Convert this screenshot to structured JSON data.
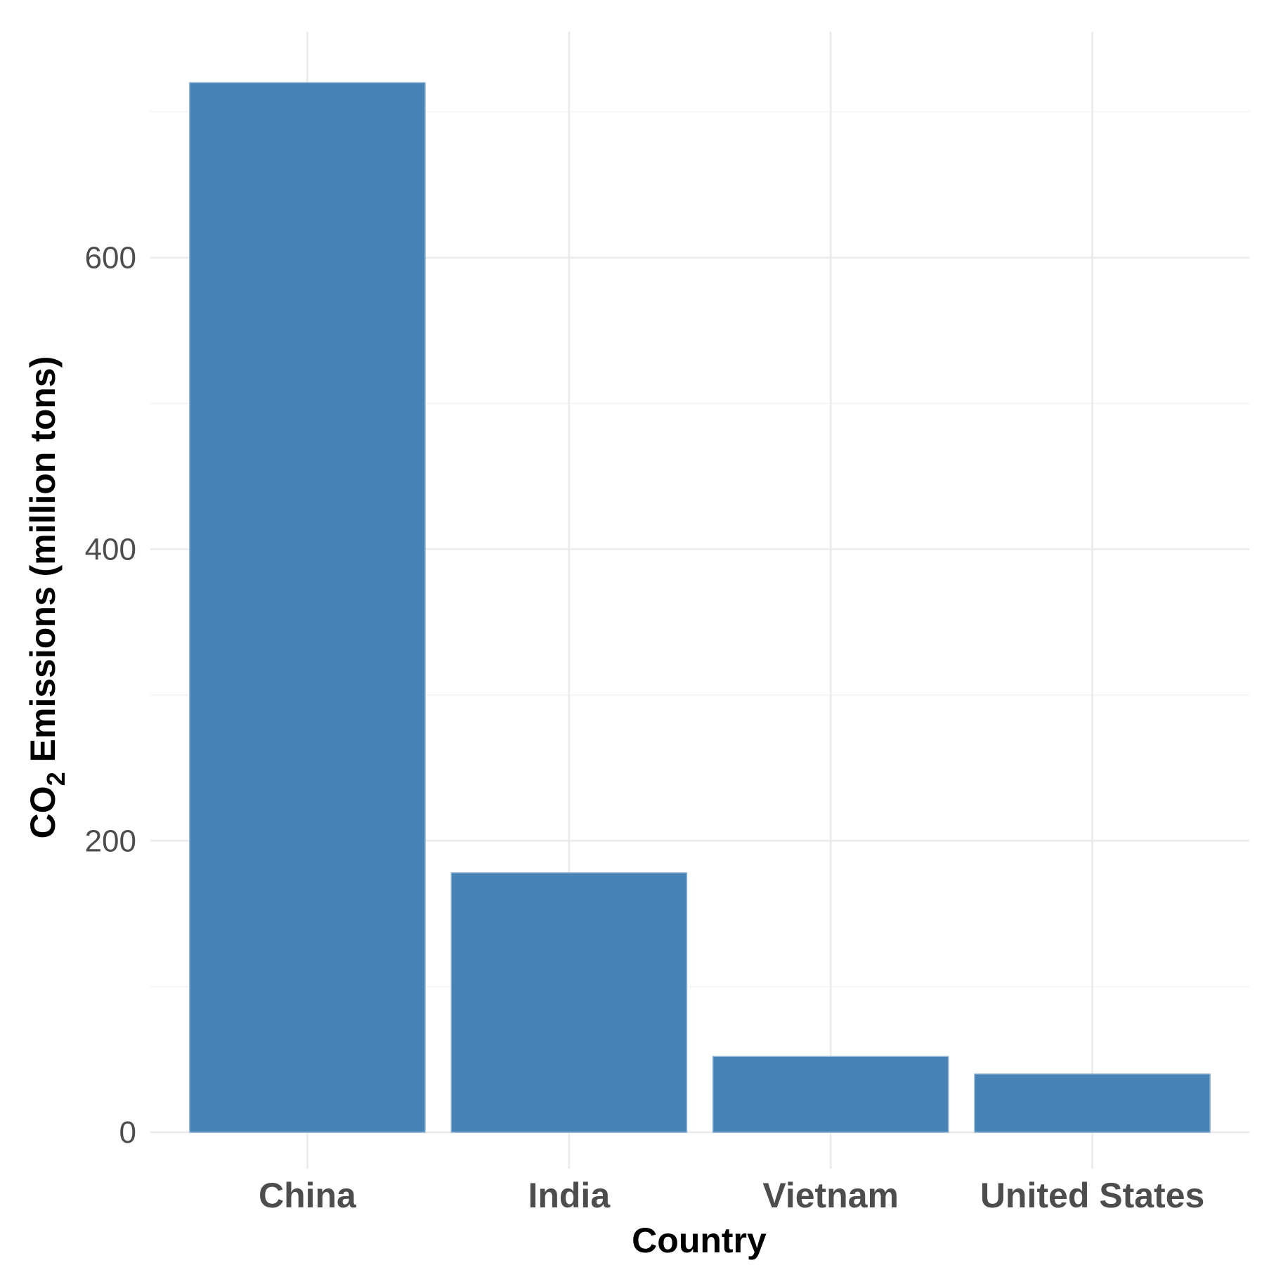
{
  "chart_data": {
    "type": "bar",
    "title": "",
    "xlabel": "Country",
    "ylabel_main": "CO",
    "ylabel_sub": "2",
    "ylabel_rest": " Emissions (million tons)",
    "categories": [
      "China",
      "India",
      "Vietnam",
      "United States"
    ],
    "values": [
      720,
      178,
      52,
      40
    ],
    "ylim": [
      -25,
      755
    ],
    "yticks": [
      0,
      200,
      400,
      600
    ],
    "yticks_minor": [
      100,
      300,
      500,
      700
    ],
    "grid": true,
    "legend": "none",
    "bar_color": "#4682B4"
  }
}
